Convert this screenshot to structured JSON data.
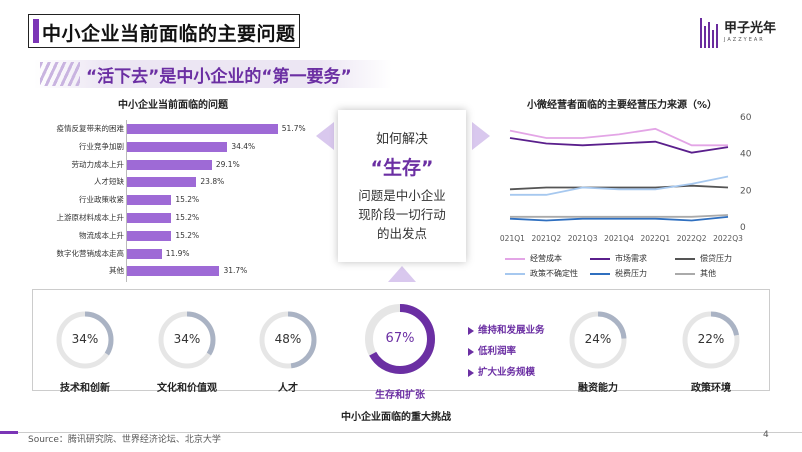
{
  "header": {
    "title": "中小企业当前面临的主要问题",
    "logo_text": "甲子光年",
    "logo_sub": "JAZZYEAR"
  },
  "slogan": "“活下去”是中小企业的“第一要务”",
  "left_chart": {
    "title": "中小企业当前面临的问题",
    "bar_color": "#9e6ad6",
    "chart_data": {
      "type": "bar",
      "title": "中小企业当前面临的问题",
      "categories": [
        "疫情反复带来的困难",
        "行业竞争加剧",
        "劳动力成本上升",
        "人才短缺",
        "行业政策收紧",
        "上游原材料成本上升",
        "物流成本上升",
        "数字化营销成本走高",
        "其他"
      ],
      "values": [
        51.7,
        34.4,
        29.1,
        23.8,
        15.2,
        15.2,
        15.2,
        11.9,
        31.7
      ],
      "value_labels": [
        "51.7%",
        "34.4%",
        "29.1%",
        "23.8%",
        "15.2%",
        "15.2%",
        "15.2%",
        "11.9%",
        "31.7%"
      ],
      "orientation": "horizontal",
      "xlim": [
        0,
        60
      ]
    }
  },
  "center_box": {
    "line1": "如何解决",
    "line2": "“生存”",
    "line3a": "问题是中小企业",
    "line3b": "现阶段一切行动",
    "line3c": "的出发点"
  },
  "right_chart": {
    "title": "小微经营者面临的主要经营压力来源（%）",
    "chart_data": {
      "type": "line",
      "title": "小微经营者面临的主要经营压力来源（%）",
      "x": [
        "2021Q1",
        "2021Q2",
        "2021Q3",
        "2021Q4",
        "2022Q1",
        "2022Q2",
        "2022Q3"
      ],
      "ylim": [
        0,
        60
      ],
      "yticks": [
        "60",
        "40",
        "20",
        "0"
      ],
      "series": [
        {
          "name": "经营成本",
          "color": "#e3a5e6",
          "values": [
            52,
            48,
            48,
            50,
            53,
            44,
            44
          ]
        },
        {
          "name": "市场需求",
          "color": "#5a1f8c",
          "values": [
            48,
            45,
            44,
            45,
            46,
            40,
            43
          ]
        },
        {
          "name": "偿贷压力",
          "color": "#555555",
          "values": [
            20,
            21,
            21,
            21,
            21,
            22,
            21
          ]
        },
        {
          "name": "政策不确定性",
          "color": "#a6c8ef",
          "values": [
            17,
            17,
            21,
            20,
            20,
            23,
            27
          ]
        },
        {
          "name": "税费压力",
          "color": "#2f6fbf",
          "values": [
            4,
            3,
            4,
            4,
            4,
            3,
            5
          ]
        },
        {
          "name": "其他",
          "color": "#aaaaaa",
          "values": [
            5,
            5,
            5,
            5,
            5,
            5,
            6
          ]
        }
      ]
    }
  },
  "challenges": {
    "title": "中小企业面临的重大挑战",
    "items": [
      {
        "label": "技术和创新",
        "pct": "34%",
        "value": 34
      },
      {
        "label": "文化和价值观",
        "pct": "34%",
        "value": 34
      },
      {
        "label": "人才",
        "pct": "48%",
        "value": 48
      },
      {
        "label": "生存和扩张",
        "pct": "67%",
        "value": 67
      },
      {
        "label": "融资能力",
        "pct": "24%",
        "value": 24
      },
      {
        "label": "政策环境",
        "pct": "22%",
        "value": 22
      }
    ],
    "growth_points": [
      "维持和发展业务",
      "低利润率",
      "扩大业务规模"
    ]
  },
  "footer": {
    "source": "Source：腾讯研究院、世界经济论坛、北京大学",
    "page": "4"
  }
}
